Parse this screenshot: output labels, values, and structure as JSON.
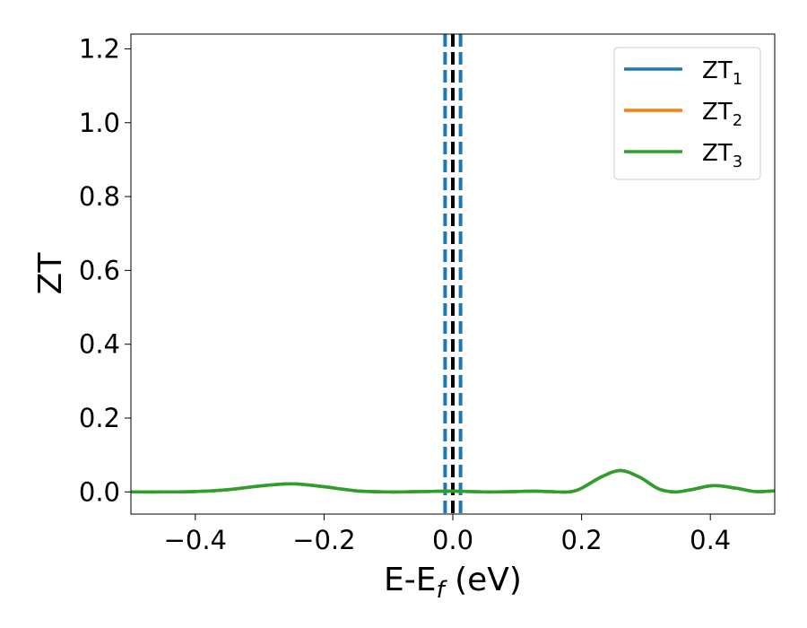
{
  "chart_data": {
    "type": "line",
    "xlabel": "E-E",
    "xlabel_sub": "f",
    "xlabel_unit": " (eV)",
    "ylabel": "ZT",
    "xlim": [
      -0.5,
      0.5
    ],
    "ylim": [
      -0.06,
      1.24
    ],
    "xticks": [
      -0.4,
      -0.2,
      0.0,
      0.2,
      0.4
    ],
    "xtick_labels": [
      "−0.4",
      "−0.2",
      "0.0",
      "0.2",
      "0.4"
    ],
    "yticks": [
      0.0,
      0.2,
      0.4,
      0.6,
      0.8,
      1.0,
      1.2
    ],
    "ytick_labels": [
      "0.0",
      "0.2",
      "0.4",
      "0.6",
      "0.8",
      "1.0",
      "1.2"
    ],
    "legend_position": "top-right",
    "series": [
      {
        "name": "ZT",
        "name_sub": "1",
        "color": "#1f77b4",
        "x": [
          -0.5,
          -0.45,
          -0.4,
          -0.35,
          -0.3,
          -0.25,
          -0.2,
          -0.15,
          -0.1,
          -0.05,
          0.0,
          0.05,
          0.1,
          0.125,
          0.15,
          0.18,
          0.2,
          0.23,
          0.26,
          0.29,
          0.32,
          0.345,
          0.37,
          0.405,
          0.44,
          0.47,
          0.5
        ],
        "y": [
          0.0,
          0.0,
          0.001,
          0.006,
          0.016,
          0.022,
          0.014,
          0.003,
          0.0,
          0.001,
          0.002,
          0.0,
          0.001,
          0.002,
          0.001,
          0.0,
          0.01,
          0.04,
          0.058,
          0.04,
          0.008,
          0.0,
          0.006,
          0.017,
          0.01,
          0.001,
          0.003
        ]
      },
      {
        "name": "ZT",
        "name_sub": "2",
        "color": "#ff7f0e",
        "x": [
          -0.5,
          -0.45,
          -0.4,
          -0.35,
          -0.3,
          -0.25,
          -0.2,
          -0.15,
          -0.1,
          -0.05,
          0.0,
          0.05,
          0.1,
          0.125,
          0.15,
          0.18,
          0.2,
          0.23,
          0.26,
          0.29,
          0.32,
          0.345,
          0.37,
          0.405,
          0.44,
          0.47,
          0.5
        ],
        "y": [
          0.0,
          0.0,
          0.001,
          0.006,
          0.016,
          0.022,
          0.014,
          0.003,
          0.0,
          0.001,
          0.002,
          0.0,
          0.001,
          0.002,
          0.001,
          0.0,
          0.01,
          0.04,
          0.058,
          0.04,
          0.008,
          0.0,
          0.006,
          0.017,
          0.01,
          0.001,
          0.003
        ]
      },
      {
        "name": "ZT",
        "name_sub": "3",
        "color": "#2ca02c",
        "x": [
          -0.5,
          -0.45,
          -0.4,
          -0.35,
          -0.3,
          -0.25,
          -0.2,
          -0.15,
          -0.1,
          -0.05,
          0.0,
          0.05,
          0.1,
          0.125,
          0.15,
          0.18,
          0.2,
          0.23,
          0.26,
          0.29,
          0.32,
          0.345,
          0.37,
          0.405,
          0.44,
          0.47,
          0.5
        ],
        "y": [
          0.0,
          0.0,
          0.001,
          0.006,
          0.016,
          0.022,
          0.014,
          0.003,
          0.0,
          0.001,
          0.002,
          0.0,
          0.001,
          0.002,
          0.001,
          0.0,
          0.01,
          0.04,
          0.058,
          0.04,
          0.008,
          0.0,
          0.006,
          0.017,
          0.01,
          0.001,
          0.003
        ]
      }
    ],
    "vertical_lines": [
      {
        "x": -0.012,
        "color": "#1f77b4",
        "style": "dashed"
      },
      {
        "x": 0.0,
        "color": "#000000",
        "style": "dashed"
      },
      {
        "x": 0.012,
        "color": "#1f77b4",
        "style": "dashed"
      }
    ]
  }
}
